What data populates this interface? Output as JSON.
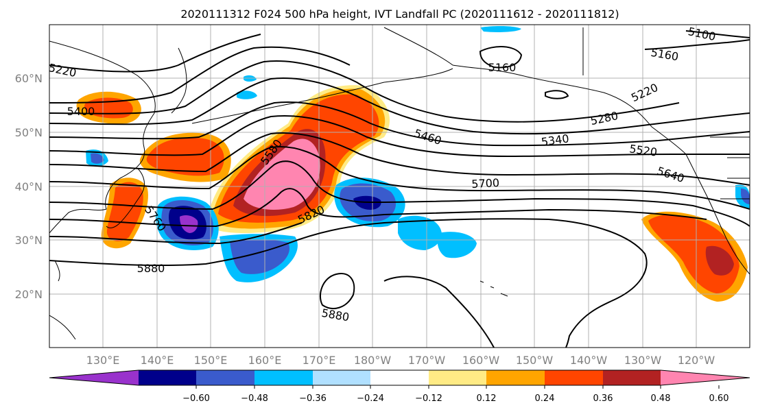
{
  "title": "2020111312 F024 500 hPa height, IVT Landfall PC (2020111612 - 2020111812)",
  "lat_ticks": [
    "60°N",
    "50°N",
    "40°N",
    "30°N",
    "20°N"
  ],
  "lon_ticks": [
    "130°E",
    "140°E",
    "150°E",
    "160°E",
    "170°E",
    "180°W",
    "170°W",
    "160°W",
    "150°W",
    "140°W",
    "130°W",
    "120°W"
  ],
  "contour_labels": [
    "5220",
    "5400",
    "5580",
    "5820",
    "5880",
    "5880",
    "5460",
    "5160",
    "5100",
    "5160",
    "5220",
    "5280",
    "5340",
    "5520",
    "5640",
    "5700",
    "5760"
  ],
  "colorbar": {
    "colors": [
      "#9932cc",
      "#00008b",
      "#3a5bcc",
      "#00bfff",
      "#b0e0ff",
      "#ffffff",
      "#ffeb85",
      "#ffa500",
      "#ff4500",
      "#b22222",
      "#ff85b0"
    ],
    "tick_labels": [
      "−0.60",
      "−0.48",
      "−0.36",
      "−0.24",
      "−0.12",
      "0.12",
      "0.24",
      "0.36",
      "0.48",
      "0.60"
    ]
  },
  "palette": {
    "coast": "#000000",
    "grid": "#b0b0b0",
    "contour": "#000000"
  }
}
